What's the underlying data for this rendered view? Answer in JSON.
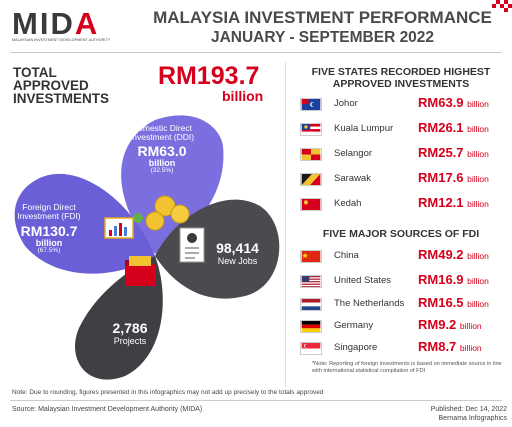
{
  "header": {
    "logo_text_a": "MI",
    "logo_text_b": "D",
    "logo_text_c": "A",
    "logo_subtitle": "MALAYSIAN INVESTMENT DEVELOPMENT AUTHORITY",
    "title": "MALAYSIA INVESTMENT PERFORMANCE",
    "subtitle": "JANUARY - SEPTEMBER 2022"
  },
  "total": {
    "label": "TOTAL APPROVED INVESTMENTS",
    "value": "RM193.7",
    "unit": "billion"
  },
  "petals": {
    "ddi": {
      "label": "Domestic Direct Investment (DDI)",
      "value": "RM63.0",
      "unit": "billion",
      "pct": "(32.5%)"
    },
    "fdi": {
      "label": "Foreign Direct Investment (FDI)",
      "value": "RM130.7",
      "unit": "billion",
      "pct": "(67.5%)"
    },
    "jobs": {
      "value": "98,414",
      "label": "New Jobs"
    },
    "projects": {
      "value": "2,786",
      "label": "Projects"
    }
  },
  "states": {
    "heading": "FIVE STATES RECORDED HIGHEST APPROVED INVESTMENTS",
    "items": [
      {
        "name": "Johor",
        "value": "RM63.9",
        "unit": "billion"
      },
      {
        "name": "Kuala Lumpur",
        "value": "RM26.1",
        "unit": "billion"
      },
      {
        "name": "Selangor",
        "value": "RM25.7",
        "unit": "billion"
      },
      {
        "name": "Sarawak",
        "value": "RM17.6",
        "unit": "billion"
      },
      {
        "name": "Kedah",
        "value": "RM12.1",
        "unit": "billion"
      }
    ]
  },
  "sources": {
    "heading": "FIVE MAJOR SOURCES OF FDI",
    "items": [
      {
        "name": "China",
        "value": "RM49.2",
        "unit": "billion"
      },
      {
        "name": "United States",
        "value": "RM16.9",
        "unit": "billion"
      },
      {
        "name": "The Netherlands",
        "value": "RM16.5",
        "unit": "billion"
      },
      {
        "name": "Germany",
        "value": "RM9.2",
        "unit": "billion"
      },
      {
        "name": "Singapore",
        "value": "RM8.7",
        "unit": "billion"
      }
    ],
    "note": "*Note: Reporting of foreign investments is based on immediate source in line with international statistical compilation of FDI"
  },
  "footer": {
    "rounding_note": "Note: Due to rounding, figures presented in this infographics may not add up precisely to the totals approved",
    "source": "Source: Malaysian Investment Development Authority (MIDA)",
    "published": "Published: Dec 14, 2022",
    "publisher": "Bernama Infographics"
  },
  "colors": {
    "accent": "#d6001c",
    "ddi_purple": "#7b6fe0",
    "fdi_purple": "#6a5fd6",
    "petal_gray": "#4a4a4f"
  }
}
